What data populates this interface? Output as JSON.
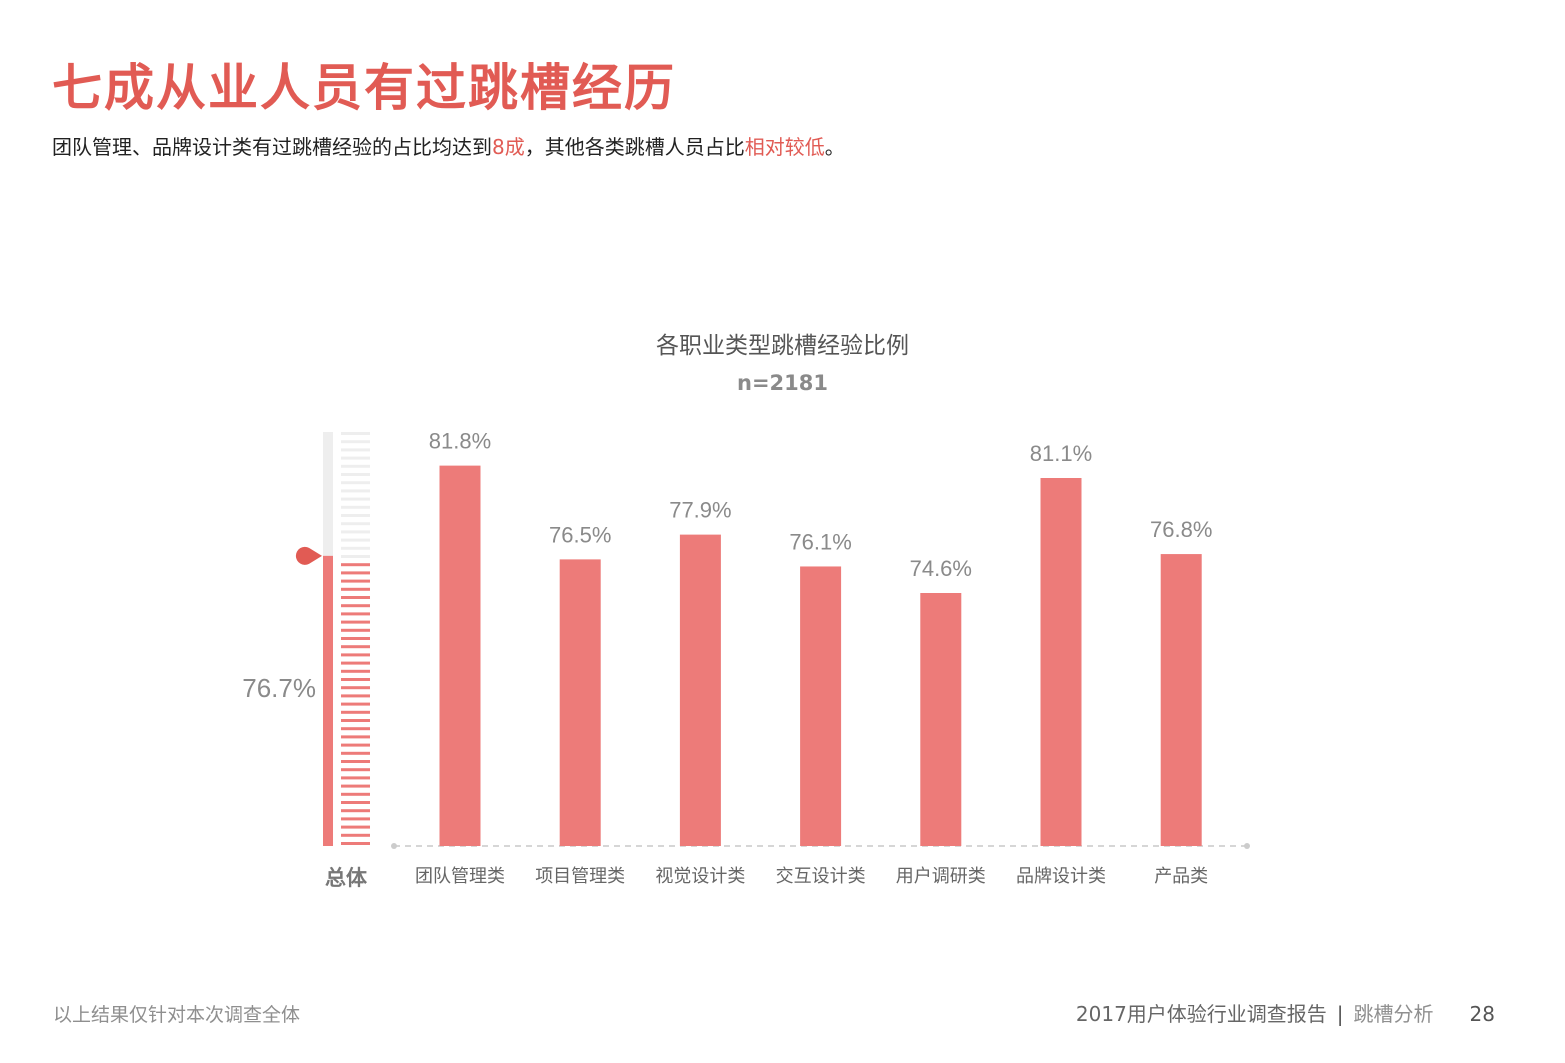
{
  "header": {
    "title": "七成从业人员有过跳槽经历",
    "subtitle_parts": [
      "团队管理、品牌设计类有过跳槽经验的占比均达到",
      "8成",
      "，其他各类跳槽人员占比",
      "相对较低",
      "。"
    ]
  },
  "colors": {
    "accent": "#e15b54",
    "bar": "#ed7b79",
    "gauge_empty": "#eeeeee",
    "label_gray": "#8a8a8a"
  },
  "chart_data": {
    "type": "bar",
    "title": "各职业类型跳槽经验比例",
    "sample_size": "n=2181",
    "categories": [
      "团队管理类",
      "项目管理类",
      "视觉设计类",
      "交互设计类",
      "用户调研类",
      "品牌设计类",
      "产品类"
    ],
    "values": [
      81.8,
      76.5,
      77.9,
      76.1,
      74.6,
      81.1,
      76.8
    ],
    "value_labels": [
      "81.8%",
      "76.5%",
      "77.9%",
      "76.1%",
      "74.6%",
      "81.1%",
      "76.8%"
    ],
    "overall": {
      "label": "总体",
      "value": 76.7,
      "value_label": "76.7%"
    },
    "ylim": [
      60.3,
      83.7
    ],
    "legend": "none",
    "grid": false
  },
  "footer": {
    "note": "以上结果仅针对本次调查全体",
    "report": "2017用户体验行业调查报告",
    "separator": "|",
    "section": "跳槽分析",
    "page": "28"
  }
}
